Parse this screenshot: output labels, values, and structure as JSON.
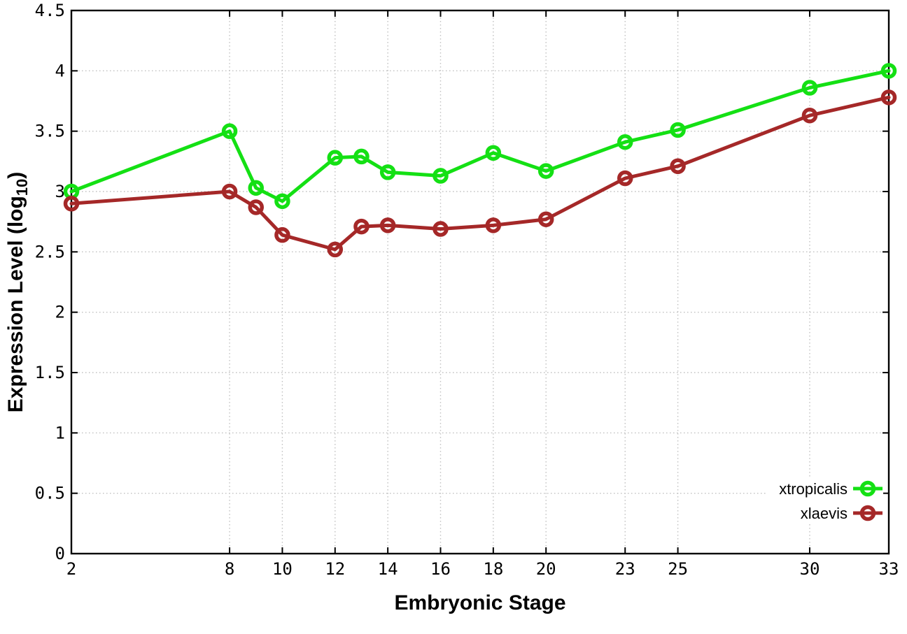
{
  "figure": {
    "background": "#ffffff",
    "border_color": "#000000",
    "grid_color": "#c0c0c0",
    "tick_color": "#000000"
  },
  "chart_data": {
    "type": "line",
    "title": "",
    "xlabel": "Embryonic Stage",
    "ylabel": "Expression Level (log10)",
    "ylabel_parts": {
      "main": "Expression Level (log",
      "sub": "10",
      "end": ")"
    },
    "xlim": [
      2,
      33
    ],
    "ylim": [
      0,
      4.5
    ],
    "grid": true,
    "legend_position": "bottom-right",
    "x_ticks": [
      2,
      8,
      10,
      12,
      14,
      16,
      18,
      20,
      23,
      25,
      30,
      33
    ],
    "x_tick_labels": [
      "2",
      "8",
      "10",
      "12",
      "14",
      "16",
      "18",
      "20",
      "23",
      "25",
      "30",
      "33"
    ],
    "y_ticks": [
      0,
      0.5,
      1,
      1.5,
      2,
      2.5,
      3,
      3.5,
      4,
      4.5
    ],
    "y_tick_labels": [
      "0",
      "0.5",
      "1",
      "1.5",
      "2",
      "2.5",
      "3",
      "3.5",
      "4",
      "4.5"
    ],
    "x": [
      2,
      8,
      9,
      10,
      12,
      13,
      14,
      16,
      18,
      20,
      23,
      25,
      30,
      33
    ],
    "series": [
      {
        "name": "xtropicalis",
        "color": "#14e014",
        "values": [
          3.0,
          3.5,
          3.03,
          2.92,
          3.28,
          3.29,
          3.16,
          3.13,
          3.32,
          3.17,
          3.41,
          3.51,
          3.86,
          4.0
        ]
      },
      {
        "name": "xlaevis",
        "color": "#a52828",
        "values": [
          2.9,
          3.0,
          2.87,
          2.64,
          2.52,
          2.71,
          2.72,
          2.69,
          2.72,
          2.77,
          3.11,
          3.21,
          3.63,
          3.78
        ]
      }
    ]
  }
}
